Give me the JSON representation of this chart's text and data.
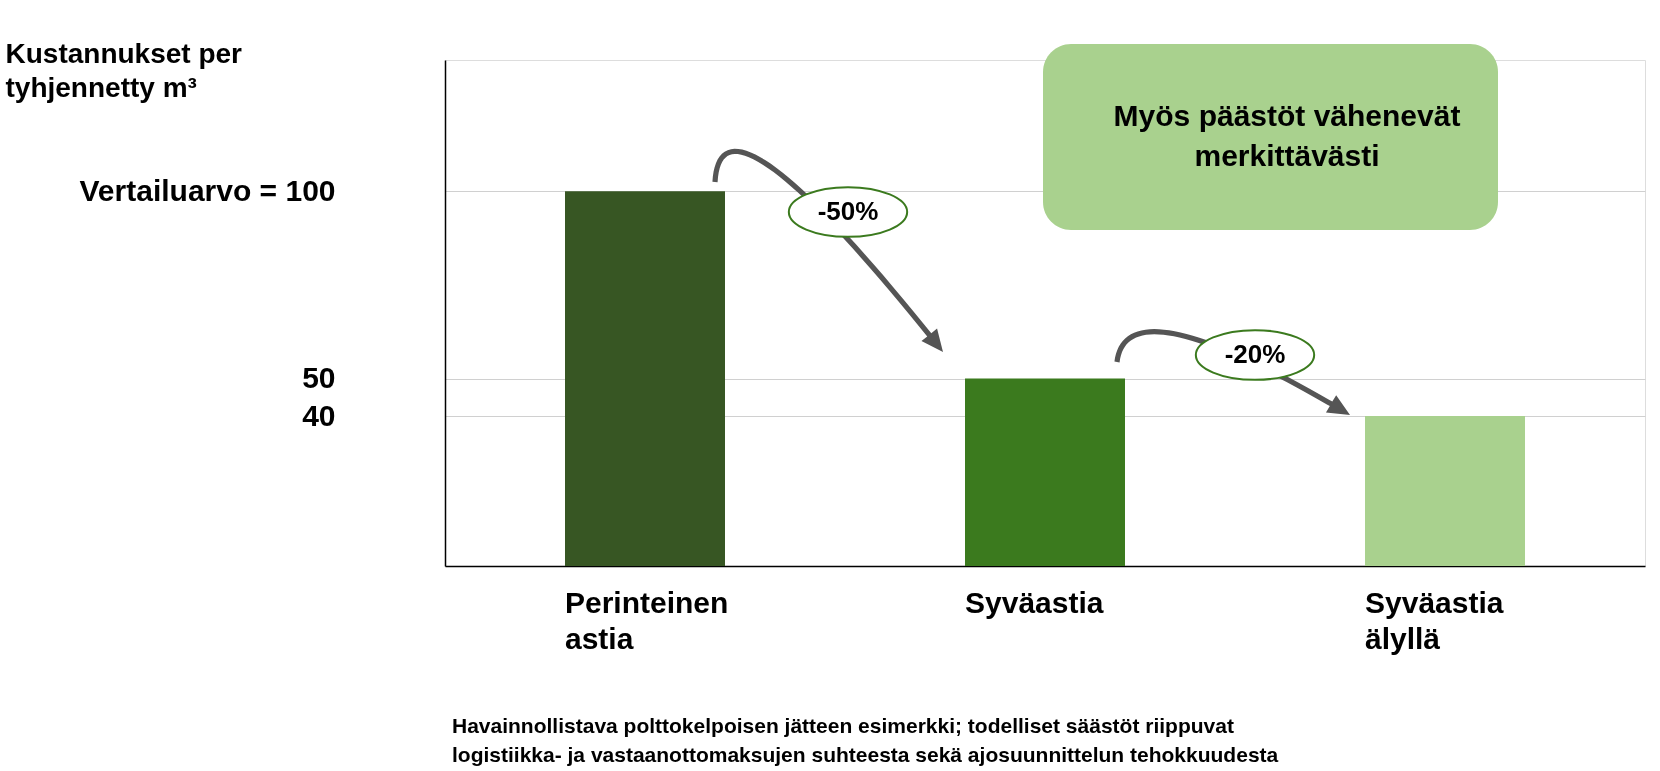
{
  "chart_data": {
    "type": "bar",
    "ylabel": "Kustannukset per tyhjennetty m³",
    "categories": [
      "Perinteinen astia",
      "Syväastia",
      "Syväastia älyllä"
    ],
    "values": [
      100,
      50,
      40
    ],
    "colors": [
      "#375623",
      "#3b7a1e",
      "#a9d18e"
    ],
    "ylim": [
      0,
      135
    ],
    "yticks": [
      {
        "value": 100,
        "label": "Vertailuarvo = 100"
      },
      50,
      40
    ],
    "grid": "y",
    "annotations": [
      "-50%",
      "-20%",
      "Myös päästöt vähenevät merkittävästi",
      "Havainnollistava polttokelpoisen jätteen esimerkki; todelliset säästöt riippuvat logistiikka- ja vastaanottomaksujen suhteesta sekä ajosuunnittelun tehokkuudesta"
    ]
  }
}
